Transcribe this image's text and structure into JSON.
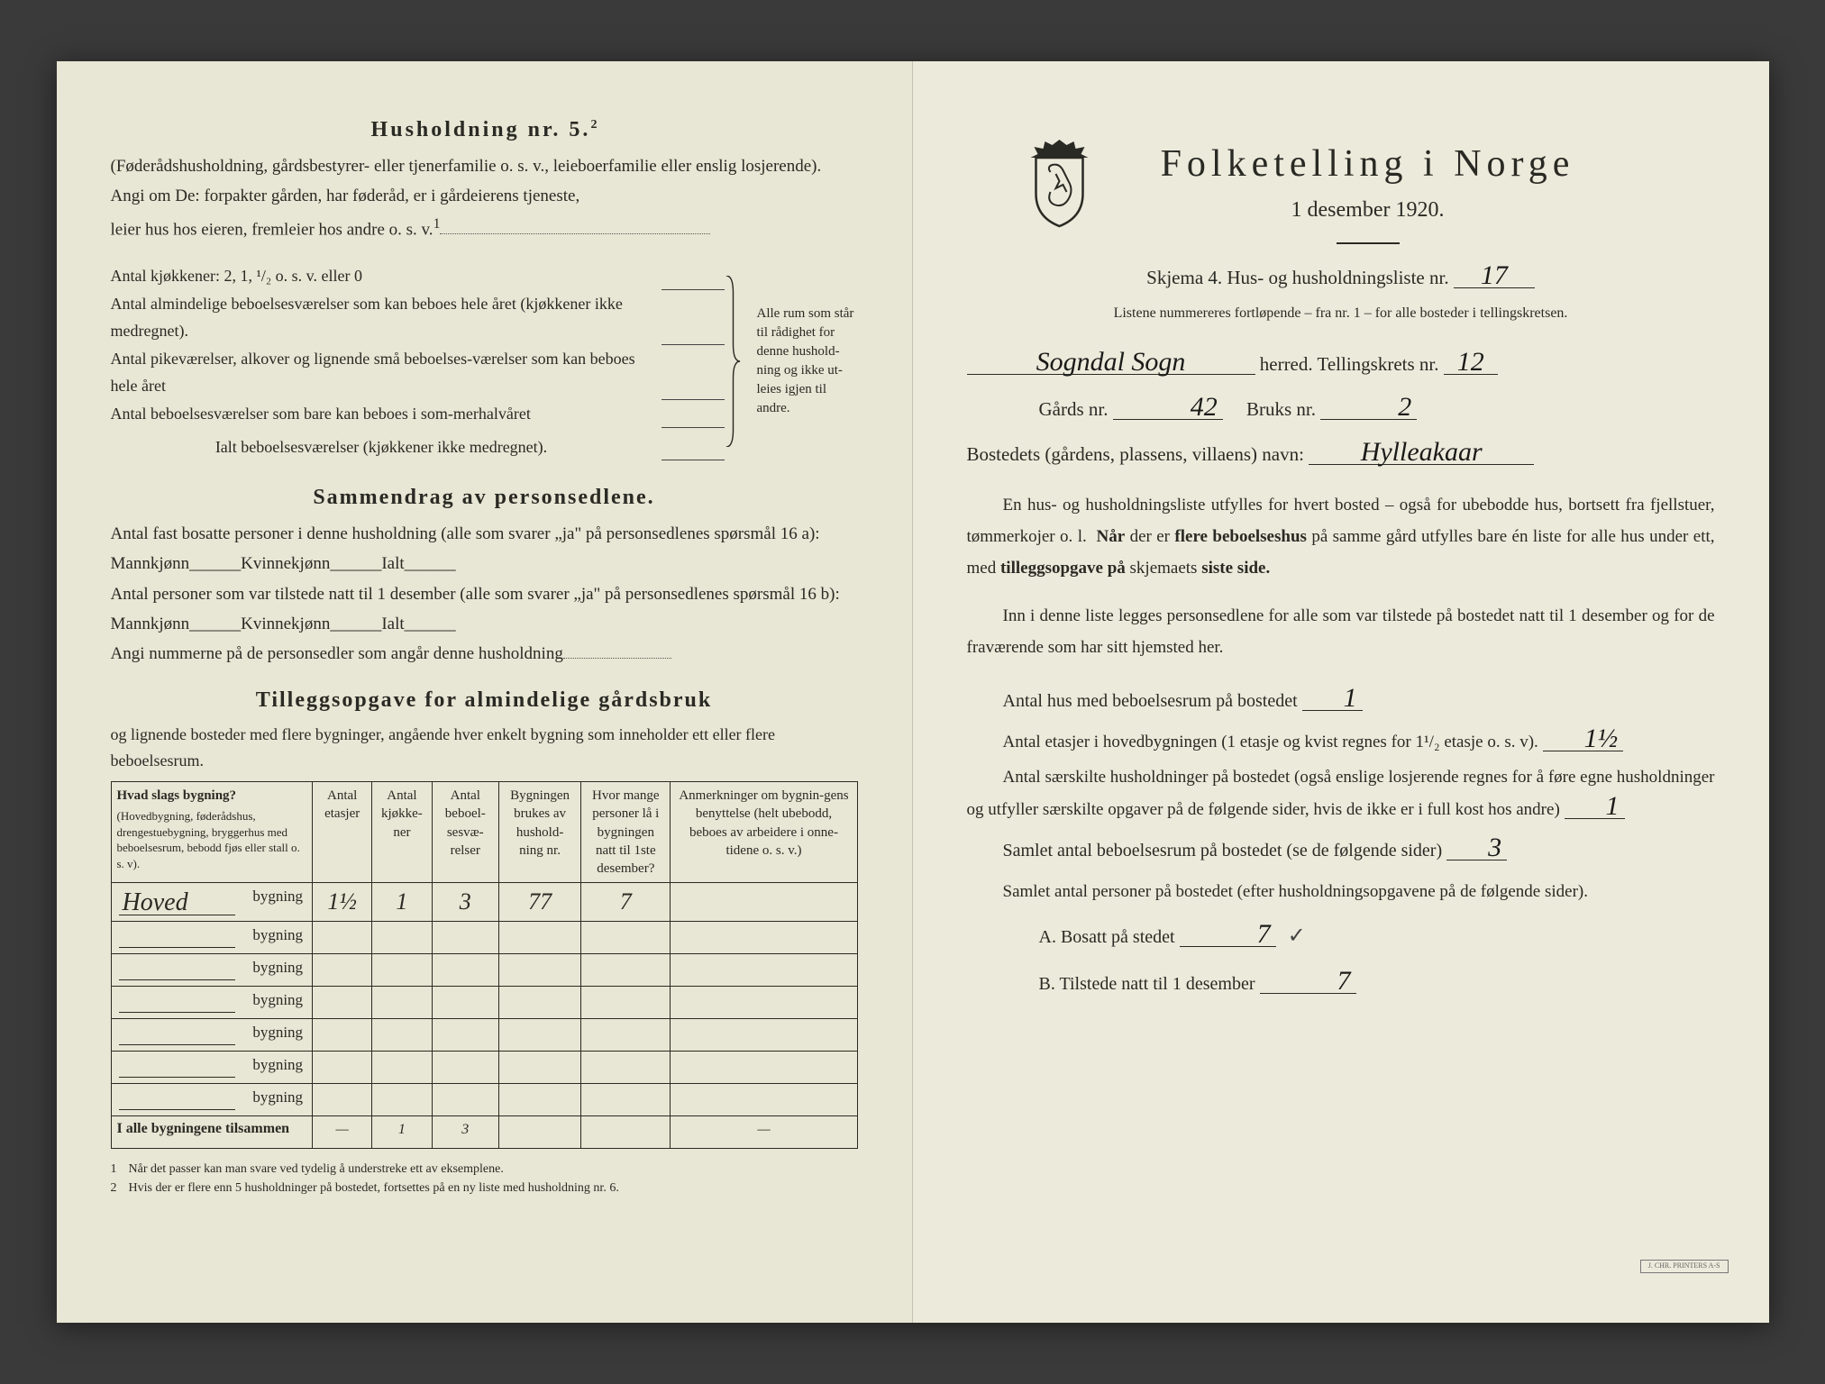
{
  "left": {
    "husholdning_title": "Husholdning nr. 5.",
    "husholdning_sup": "2",
    "husholdning_intro": "(Føderådshusholdning, gårdsbestyrer- eller tjenerfamilie o. s. v., leieboerfamilie eller enslig losjerende).",
    "angi_line1": "Angi om De: forpakter gården, har føderåd, er i gårdeierens tjeneste,",
    "angi_line2": "leier hus hos eieren, fremleier hos andre o. s. v.",
    "angi_sup": "1",
    "kjokken_label": "Antal kjøkkener: 2, 1, ¹/₂ o. s. v. eller 0",
    "brace_rows": [
      "Antal almindelige beboelsesværelser som kan beboes hele året (kjøkkener ikke medregnet).",
      "Antal pikeværelser, alkover og lignende små beboelses-værelser som kan beboes hele året",
      "Antal beboelsesværelser som bare kan beboes i som-merhalvåret"
    ],
    "brace_total": "Ialt beboelsesværelser (kjøkkener ikke medregnet).",
    "brace_caption": "Alle rum som står til rådighet for denne hushold-ning og ikke ut-leies igjen til andre.",
    "sammendrag_title": "Sammendrag av personsedlene.",
    "sammendrag_l1": "Antal fast bosatte personer i denne husholdning (alle som svarer „ja\" på personsedlenes spørsmål 16 a): Mannkjønn______Kvinnekjønn______Ialt______",
    "sammendrag_l2": "Antal personer som var tilstede natt til 1 desember (alle som svarer „ja\" på personsedlenes spørsmål 16 b): Mannkjønn______Kvinnekjønn______Ialt______",
    "sammendrag_l3": "Angi nummerne på de personsedler som angår denne husholdning",
    "tillegg_title": "Tilleggsopgave for almindelige gårdsbruk",
    "tillegg_intro": "og lignende bosteder med flere bygninger, angående hver enkelt bygning som inneholder ett eller flere beboelsesrum.",
    "table": {
      "columns": [
        {
          "header": "Hvad slags bygning?",
          "sub": "(Hovedbygning, føderådshus, drengestuebygning, bryggerhus med beboelsesrum, bebodd fjøs eller stall o. s. v)."
        },
        {
          "header": "Antal etasjer"
        },
        {
          "header": "Antal kjøkke-ner"
        },
        {
          "header": "Antal beboel-sesvæ-relser"
        },
        {
          "header": "Bygningen brukes av hushold-ning nr."
        },
        {
          "header": "Hvor mange personer lå i bygningen natt til 1ste desember?"
        },
        {
          "header": "Anmerkninger om bygnin-gens benyttelse (helt ubebodd, beboes av arbeidere i onne-tidene o. s. v.)"
        }
      ],
      "rows": [
        {
          "bygning_hw": "Hoved",
          "etasjer": "1½",
          "kjokken": "1",
          "beboelse": "3",
          "hushold": "77",
          "personer": "7",
          "anm": ""
        },
        {
          "bygning_hw": "",
          "etasjer": "",
          "kjokken": "",
          "beboelse": "",
          "hushold": "",
          "personer": "",
          "anm": ""
        },
        {
          "bygning_hw": "",
          "etasjer": "",
          "kjokken": "",
          "beboelse": "",
          "hushold": "",
          "personer": "",
          "anm": ""
        },
        {
          "bygning_hw": "",
          "etasjer": "",
          "kjokken": "",
          "beboelse": "",
          "hushold": "",
          "personer": "",
          "anm": ""
        },
        {
          "bygning_hw": "",
          "etasjer": "",
          "kjokken": "",
          "beboelse": "",
          "hushold": "",
          "personer": "",
          "anm": ""
        },
        {
          "bygning_hw": "",
          "etasjer": "",
          "kjokken": "",
          "beboelse": "",
          "hushold": "",
          "personer": "",
          "anm": ""
        },
        {
          "bygning_hw": "",
          "etasjer": "",
          "kjokken": "",
          "beboelse": "",
          "hushold": "",
          "personer": "",
          "anm": ""
        }
      ],
      "bygning_word": "bygning",
      "total_label": "I alle bygningene tilsammen",
      "total": {
        "etasjer": "—",
        "kjokken": "1",
        "beboelse": "3",
        "hushold": "",
        "personer": "",
        "anm": "—"
      }
    },
    "footnote1": "Når det passer kan man svare ved tydelig å understreke ett av eksemplene.",
    "footnote2": "Hvis der er flere enn 5 husholdninger på bostedet, fortsettes på en ny liste med husholdning nr. 6."
  },
  "right": {
    "title": "Folketelling i Norge",
    "subtitle": "1 desember 1920.",
    "skjema_pre": "Skjema 4.  Hus- og husholdningsliste nr.",
    "skjema_val": "17",
    "listene_note": "Listene nummereres fortløpende – fra nr. 1 – for alle bosteder i tellingskretsen.",
    "herred_val": "Sogndal Sogn",
    "herred_post": "herred.   Tellingskrets nr.",
    "krets_val": "12",
    "gards_pre": "Gårds nr.",
    "gards_val": "42",
    "bruks_pre": "Bruks nr.",
    "bruks_val": "2",
    "bosted_pre": "Bostedets (gårdens, plassens, villaens) navn:",
    "bosted_val": "Hylleakaar",
    "para1": "En hus- og husholdningsliste utfylles for hvert bosted – også for ubebodde hus, bortsett fra fjellstuer, tømmerkojer o. l.  Når der er flere beboelseshus på samme gård utfylles bare én liste for alle hus under ett, med tilleggsopgave på skjemaets siste side.",
    "para2": "Inn i denne liste legges personsedlene for alle som var tilstede på bostedet natt til 1 desember og for de fraværende som har sitt hjemsted her.",
    "stat1_label": "Antal hus med beboelsesrum på bostedet",
    "stat1_val": "1",
    "stat2_label": "Antal  etasjer  i  hovedbygningen  (1  etasje  og  kvist  regnes  for  1¹/₂ etasje o. s. v).",
    "stat2_val": "1½",
    "stat3_label": "Antal særskilte husholdninger på bostedet (også enslige losjerende regnes for å føre egne husholdninger og utfyller særskilte opgaver på de følgende sider, hvis de ikke er i full kost hos andre)",
    "stat3_val": "1",
    "stat4_label": "Samlet antal beboelsesrum på bostedet (se de følgende sider)",
    "stat4_val": "3",
    "stat5_label": "Samlet antal personer på bostedet (efter husholdningsopgavene på de følgende sider).",
    "statA_label": "A.  Bosatt på stedet",
    "statA_val": "7",
    "statB_label": "B.  Tilstede natt til 1 desember",
    "statB_val": "7",
    "stamp": "J. CHR. PRINTERS A-S"
  },
  "colors": {
    "page_left_bg": "#e8e6d4",
    "page_right_bg": "#eceadb",
    "text": "#2a2a24",
    "handwriting": "#1a1a18",
    "border": "#2a2a24"
  }
}
